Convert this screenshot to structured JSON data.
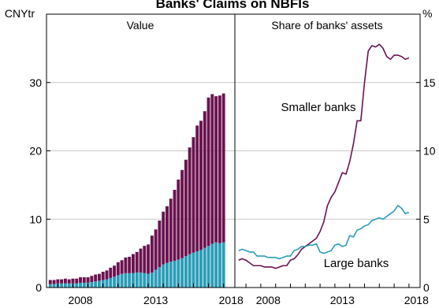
{
  "title": "Banks' Claims on NBFIs",
  "colors": {
    "smaller_banks": "#6b1350",
    "large_banks": "#2a9db8",
    "axis": "#000000",
    "grid": "#c8c8c8"
  },
  "chart_data": [
    {
      "type": "bar",
      "stacked": true,
      "panel_title": "Value",
      "unit_label": "CNYtr",
      "ylim": [
        0,
        40
      ],
      "yticks": [
        0,
        10,
        20,
        30
      ],
      "xlim": [
        2006.25,
        2018.75
      ],
      "xticks": [
        2008,
        2013,
        2018
      ],
      "grid": true,
      "x": [
        2006.5,
        2006.75,
        2007.0,
        2007.25,
        2007.5,
        2007.75,
        2008.0,
        2008.25,
        2008.5,
        2008.75,
        2009.0,
        2009.25,
        2009.5,
        2009.75,
        2010.0,
        2010.25,
        2010.5,
        2010.75,
        2011.0,
        2011.25,
        2011.5,
        2011.75,
        2012.0,
        2012.25,
        2012.5,
        2012.75,
        2013.0,
        2013.25,
        2013.5,
        2013.75,
        2014.0,
        2014.25,
        2014.5,
        2014.75,
        2015.0,
        2015.25,
        2015.5,
        2015.75,
        2016.0,
        2016.25,
        2016.5,
        2016.75,
        2017.0,
        2017.25,
        2017.5,
        2017.75,
        2018.0
      ],
      "series": [
        {
          "name": "Large banks",
          "values": [
            0.5,
            0.5,
            0.6,
            0.6,
            0.6,
            0.6,
            0.6,
            0.6,
            0.7,
            0.7,
            0.7,
            0.8,
            0.9,
            1.0,
            1.1,
            1.2,
            1.4,
            1.6,
            1.8,
            2.0,
            2.1,
            2.1,
            2.1,
            2.2,
            2.2,
            2.1,
            2.0,
            2.2,
            2.6,
            3.0,
            3.4,
            3.6,
            3.8,
            3.9,
            4.1,
            4.3,
            4.6,
            4.9,
            5.1,
            5.3,
            5.5,
            5.8,
            6.1,
            6.4,
            6.6,
            6.5,
            6.6
          ]
        },
        {
          "name": "Smaller banks",
          "values": [
            0.6,
            0.6,
            0.6,
            0.6,
            0.7,
            0.6,
            0.7,
            0.7,
            0.8,
            0.8,
            0.8,
            0.9,
            1.0,
            1.0,
            1.2,
            1.3,
            1.5,
            1.6,
            1.9,
            2.0,
            2.3,
            2.4,
            2.8,
            3.0,
            3.5,
            4.0,
            4.3,
            5.4,
            5.9,
            6.8,
            7.7,
            8.3,
            9.2,
            10.4,
            11.7,
            12.9,
            14.1,
            15.6,
            16.9,
            18.4,
            18.9,
            20.0,
            21.7,
            21.9,
            21.4,
            21.6,
            21.8
          ]
        }
      ]
    },
    {
      "type": "line",
      "panel_title": "Share of banks' assets",
      "unit_label": "%",
      "ylim": [
        0,
        20
      ],
      "yticks": [
        0,
        5,
        10,
        15
      ],
      "xlim": [
        2006.25,
        2018.75
      ],
      "xticks": [
        2008,
        2013,
        2018
      ],
      "grid": true,
      "series": [
        {
          "name": "Smaller banks",
          "x": [
            2006.5,
            2006.75,
            2007.0,
            2007.25,
            2007.5,
            2007.75,
            2008.0,
            2008.25,
            2008.5,
            2008.75,
            2009.0,
            2009.25,
            2009.5,
            2009.75,
            2010.0,
            2010.25,
            2010.5,
            2010.75,
            2011.0,
            2011.25,
            2011.5,
            2011.75,
            2012.0,
            2012.25,
            2012.5,
            2012.75,
            2013.0,
            2013.25,
            2013.5,
            2013.75,
            2014.0,
            2014.25,
            2014.5,
            2014.75,
            2015.0,
            2015.25,
            2015.5,
            2015.75,
            2016.0,
            2016.25,
            2016.5,
            2016.75,
            2017.0,
            2017.25,
            2017.5,
            2017.75,
            2018.0
          ],
          "values": [
            2.0,
            2.1,
            2.0,
            1.8,
            1.6,
            1.6,
            1.6,
            1.5,
            1.5,
            1.5,
            1.4,
            1.5,
            1.6,
            1.6,
            2.0,
            2.1,
            2.4,
            2.8,
            3.0,
            3.2,
            3.4,
            3.6,
            4.1,
            4.8,
            6.0,
            6.6,
            7.0,
            7.7,
            8.4,
            8.3,
            9.2,
            10.5,
            12.2,
            12.2,
            15.0,
            17.3,
            17.7,
            17.6,
            17.8,
            17.5,
            16.9,
            16.7,
            17.0,
            17.0,
            16.9,
            16.7,
            16.8
          ]
        },
        {
          "name": "Large banks",
          "x": [
            2006.5,
            2006.75,
            2007.0,
            2007.25,
            2007.5,
            2007.75,
            2008.0,
            2008.25,
            2008.5,
            2008.75,
            2009.0,
            2009.25,
            2009.5,
            2009.75,
            2010.0,
            2010.25,
            2010.5,
            2010.75,
            2011.0,
            2011.25,
            2011.5,
            2011.75,
            2012.0,
            2012.25,
            2012.5,
            2012.75,
            2013.0,
            2013.25,
            2013.5,
            2013.75,
            2014.0,
            2014.25,
            2014.5,
            2014.75,
            2015.0,
            2015.25,
            2015.5,
            2015.75,
            2016.0,
            2016.25,
            2016.5,
            2016.75,
            2017.0,
            2017.25,
            2017.5,
            2017.75,
            2018.0
          ],
          "values": [
            2.7,
            2.8,
            2.7,
            2.6,
            2.6,
            2.3,
            2.3,
            2.3,
            2.2,
            2.2,
            2.2,
            2.1,
            2.2,
            2.3,
            2.3,
            2.7,
            2.8,
            3.0,
            3.0,
            3.1,
            3.1,
            3.2,
            2.6,
            2.5,
            2.6,
            2.7,
            3.1,
            3.2,
            3.0,
            3.1,
            3.8,
            3.7,
            4.2,
            4.3,
            4.5,
            4.6,
            4.9,
            5.0,
            5.1,
            5.0,
            5.2,
            5.4,
            5.6,
            6.0,
            5.8,
            5.4,
            5.5
          ]
        }
      ],
      "annotations": [
        {
          "text": "Smaller banks",
          "series": "Smaller banks"
        },
        {
          "text": "Large banks",
          "series": "Large banks"
        }
      ]
    }
  ]
}
